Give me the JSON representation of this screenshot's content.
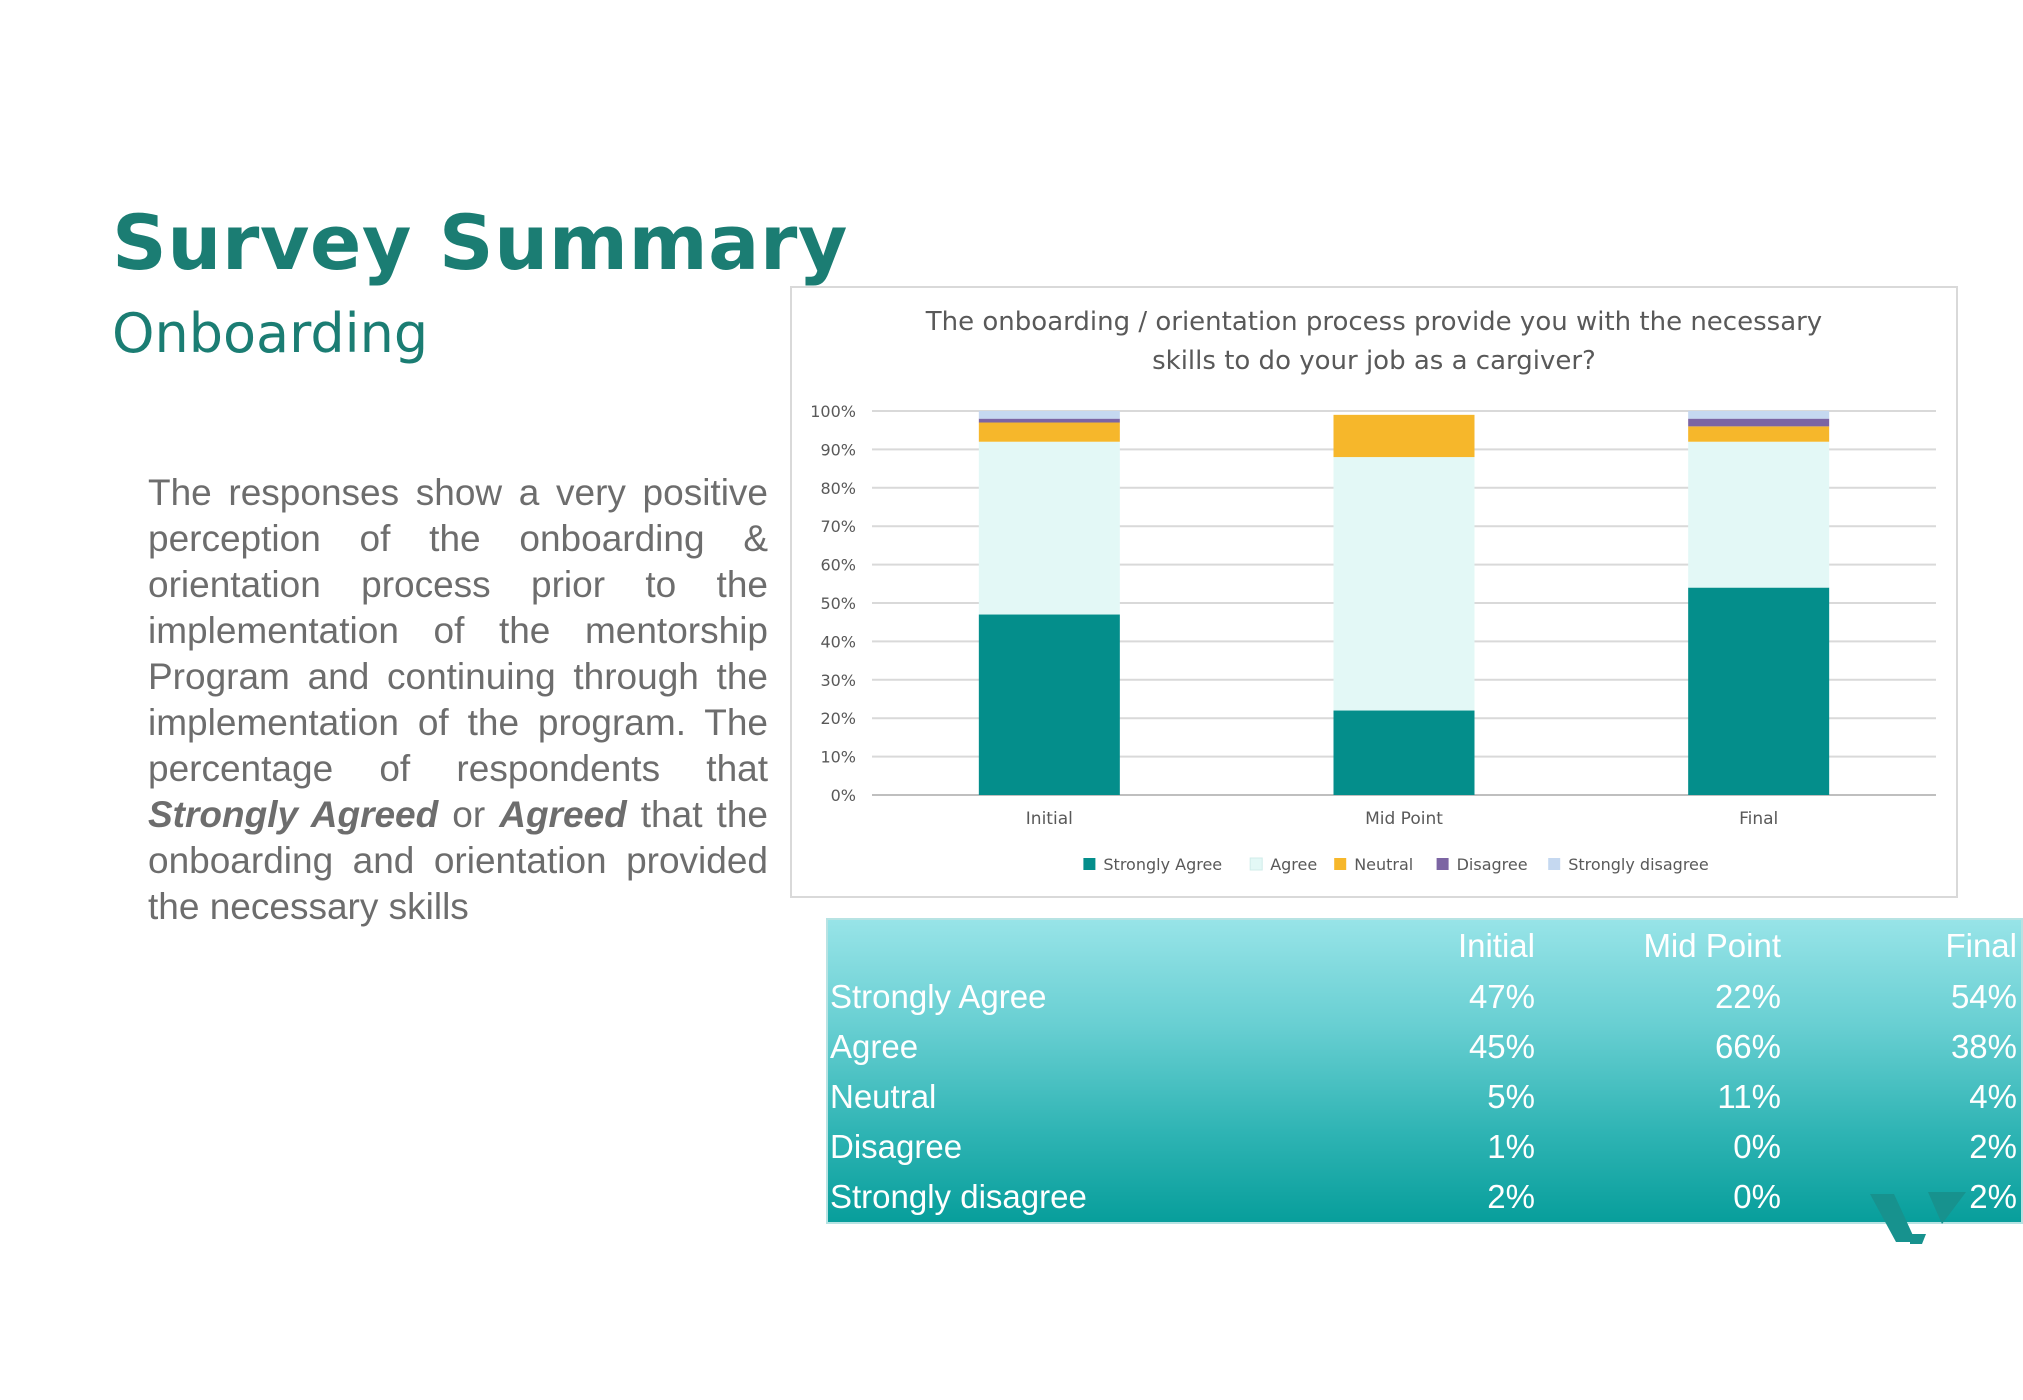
{
  "slide": {
    "title": "Survey Summary",
    "subtitle": "Onboarding",
    "body": {
      "t1": "The responses show a very positive perception of the onboarding & orientation process prior to the implementation of the mentorship Program and continuing through the implementation of the program. The percentage of respondents that ",
      "em1": "Strongly Agreed",
      "t2": " or ",
      "em2": "Agreed",
      "t3": " that the onboarding and orientation provided the necessary skills"
    }
  },
  "chart_data": {
    "type": "bar",
    "stacked": true,
    "title_lines": [
      "The onboarding / orientation process provide you with the necessary",
      "skills to do your job as a cargiver?"
    ],
    "categories": [
      "Initial",
      "Mid Point",
      "Final"
    ],
    "y_ticks": [
      "0%",
      "10%",
      "20%",
      "30%",
      "40%",
      "50%",
      "60%",
      "70%",
      "80%",
      "90%",
      "100%"
    ],
    "ylim": [
      0,
      100
    ],
    "grid": true,
    "legend_position": "bottom",
    "series": [
      {
        "name": "Strongly Agree",
        "values": [
          47,
          22,
          54
        ],
        "color": "#048e8b"
      },
      {
        "name": "Agree",
        "values": [
          45,
          66,
          38
        ],
        "color": "#e3f8f6"
      },
      {
        "name": "Neutral",
        "values": [
          5,
          11,
          4
        ],
        "color": "#f6b72b"
      },
      {
        "name": "Disagree",
        "values": [
          1,
          0,
          2
        ],
        "color": "#7c65a3"
      },
      {
        "name": "Strongly disagree",
        "values": [
          2,
          0,
          2
        ],
        "color": "#c5d8f0"
      }
    ]
  },
  "table": {
    "header": [
      "",
      "Initial",
      "Mid Point",
      "Final"
    ],
    "rows": [
      [
        "Strongly Agree",
        "47%",
        "22%",
        "54%"
      ],
      [
        "Agree",
        "45%",
        "66%",
        "38%"
      ],
      [
        "Neutral",
        "5%",
        "11%",
        "4%"
      ],
      [
        "Disagree",
        "1%",
        "0%",
        "2%"
      ],
      [
        "Strongly disagree",
        "2%",
        "0%",
        "2%"
      ]
    ]
  },
  "logo": {
    "name": "brand-logo",
    "color": "#17928e"
  }
}
